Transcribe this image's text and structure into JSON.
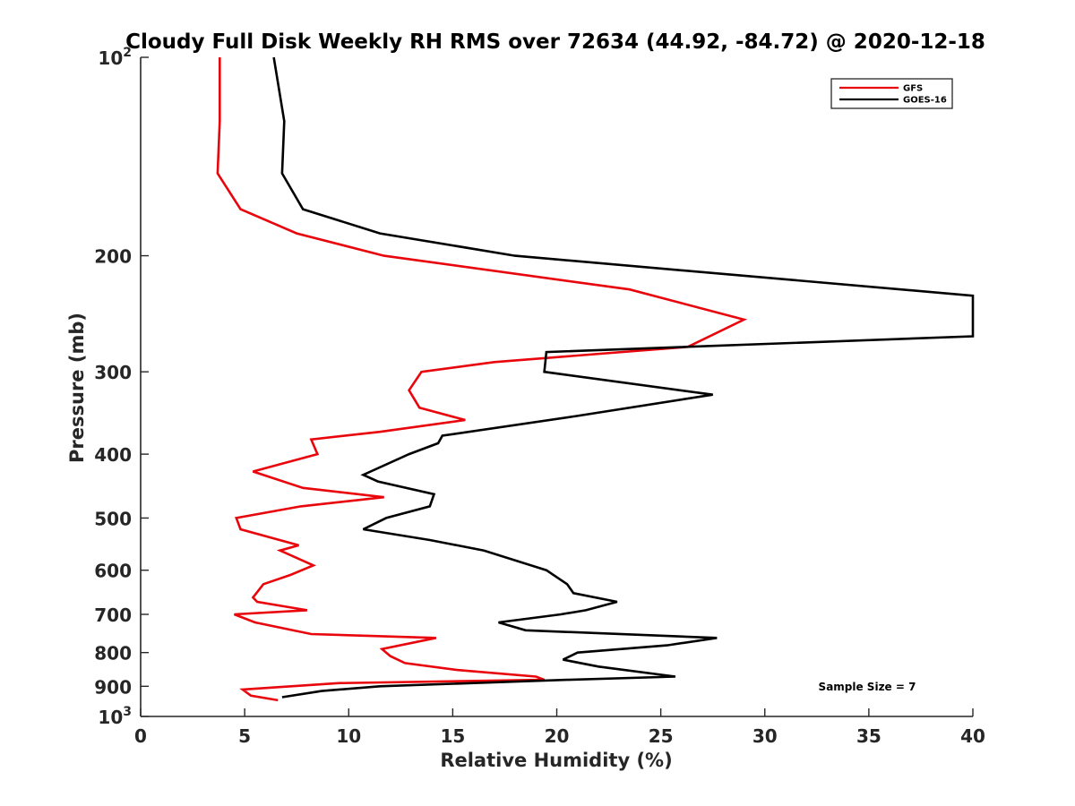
{
  "chart_data": {
    "type": "line",
    "title": "Cloudy Full Disk Weekly RH RMS over 72634 (44.92, -84.72) @ 2020-12-18",
    "xlabel": "Relative Humidity (%)",
    "ylabel": "Pressure (mb)",
    "xlim": [
      0,
      40
    ],
    "ylim": [
      100,
      1000
    ],
    "y_scale": "log",
    "y_reversed": true,
    "xticks": [
      0,
      5,
      10,
      15,
      20,
      25,
      30,
      35,
      40
    ],
    "xtick_labels": [
      "0",
      "5",
      "10",
      "15",
      "20",
      "25",
      "30",
      "35",
      "40"
    ],
    "yticks": [
      100,
      200,
      300,
      400,
      500,
      600,
      700,
      800,
      900,
      1000
    ],
    "ytick_labels": [
      {
        "base": "10",
        "exp": "2"
      },
      {
        "base": "200",
        "exp": ""
      },
      {
        "base": "300",
        "exp": ""
      },
      {
        "base": "400",
        "exp": ""
      },
      {
        "base": "500",
        "exp": ""
      },
      {
        "base": "600",
        "exp": ""
      },
      {
        "base": "700",
        "exp": ""
      },
      {
        "base": "800",
        "exp": ""
      },
      {
        "base": "900",
        "exp": ""
      },
      {
        "base": "10",
        "exp": "3"
      }
    ],
    "grid": false,
    "legend": "top-right",
    "annotation": "Sample Size = 7",
    "series": [
      {
        "name": "GFS",
        "color": "#e8050b",
        "points": [
          [
            3.8,
            100
          ],
          [
            3.8,
            125
          ],
          [
            3.7,
            150
          ],
          [
            4.8,
            170
          ],
          [
            7.5,
            185
          ],
          [
            11.7,
            200
          ],
          [
            23.5,
            225
          ],
          [
            29.0,
            250
          ],
          [
            26.3,
            275
          ],
          [
            17.0,
            290
          ],
          [
            13.5,
            300
          ],
          [
            12.9,
            320
          ],
          [
            13.4,
            340
          ],
          [
            15.6,
            355
          ],
          [
            11.5,
            370
          ],
          [
            8.2,
            380
          ],
          [
            8.5,
            400
          ],
          [
            5.4,
            425
          ],
          [
            7.8,
            450
          ],
          [
            11.7,
            465
          ],
          [
            7.7,
            480
          ],
          [
            4.6,
            500
          ],
          [
            4.8,
            520
          ],
          [
            7.6,
            550
          ],
          [
            6.7,
            560
          ],
          [
            8.3,
            590
          ],
          [
            7.2,
            610
          ],
          [
            5.9,
            630
          ],
          [
            5.4,
            660
          ],
          [
            5.6,
            670
          ],
          [
            8.0,
            690
          ],
          [
            4.5,
            700
          ],
          [
            5.5,
            720
          ],
          [
            8.2,
            750
          ],
          [
            14.2,
            760
          ],
          [
            11.6,
            790
          ],
          [
            12.0,
            810
          ],
          [
            12.7,
            830
          ],
          [
            15.2,
            850
          ],
          [
            19.0,
            870
          ],
          [
            19.4,
            880
          ],
          [
            9.5,
            890
          ],
          [
            4.9,
            910
          ],
          [
            5.3,
            930
          ],
          [
            6.6,
            945
          ]
        ]
      },
      {
        "name": "GOES-16",
        "color": "#000000",
        "points": [
          [
            6.4,
            100
          ],
          [
            6.9,
            125
          ],
          [
            6.8,
            150
          ],
          [
            7.8,
            170
          ],
          [
            11.5,
            185
          ],
          [
            18.0,
            200
          ],
          [
            40.0,
            230
          ],
          [
            40.0,
            265
          ],
          [
            19.5,
            280
          ],
          [
            19.4,
            300
          ],
          [
            27.5,
            325
          ],
          [
            21.0,
            350
          ],
          [
            14.5,
            375
          ],
          [
            14.3,
            385
          ],
          [
            12.9,
            400
          ],
          [
            10.7,
            430
          ],
          [
            11.4,
            440
          ],
          [
            14.1,
            460
          ],
          [
            13.9,
            480
          ],
          [
            11.8,
            500
          ],
          [
            10.7,
            520
          ],
          [
            13.9,
            540
          ],
          [
            16.5,
            560
          ],
          [
            19.5,
            600
          ],
          [
            20.5,
            630
          ],
          [
            20.8,
            650
          ],
          [
            22.9,
            670
          ],
          [
            21.4,
            690
          ],
          [
            20.2,
            700
          ],
          [
            17.2,
            720
          ],
          [
            18.5,
            740
          ],
          [
            27.7,
            760
          ],
          [
            25.3,
            780
          ],
          [
            21.0,
            800
          ],
          [
            20.3,
            820
          ],
          [
            22.0,
            840
          ],
          [
            25.7,
            870
          ],
          [
            20.5,
            880
          ],
          [
            11.5,
            900
          ],
          [
            8.7,
            915
          ],
          [
            6.8,
            935
          ]
        ]
      }
    ]
  }
}
